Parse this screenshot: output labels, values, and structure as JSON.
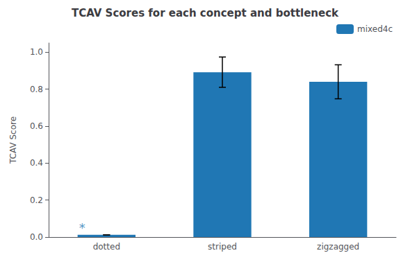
{
  "chart_data": {
    "type": "bar",
    "title": "TCAV Scores for each concept and bottleneck",
    "ylabel": "TCAV Score",
    "categories": [
      "dotted",
      "striped",
      "zigzagged"
    ],
    "series": [
      {
        "name": "mixed4c",
        "color": "#2077b4",
        "values": [
          0.012,
          0.892,
          0.84
        ],
        "errors": [
          0.0,
          0.082,
          0.092
        ]
      }
    ],
    "annotations": [
      {
        "text": "*",
        "x": "dotted",
        "y": 0.022,
        "color": "#2077b4"
      }
    ],
    "ylim": [
      0,
      1.05
    ],
    "yticks": [
      {
        "value": 0,
        "label": "0.0"
      },
      0.2,
      0.4,
      0.6,
      0.8,
      {
        "value": 1,
        "label": "1.0"
      }
    ],
    "grid": false,
    "legend": "upper right"
  }
}
